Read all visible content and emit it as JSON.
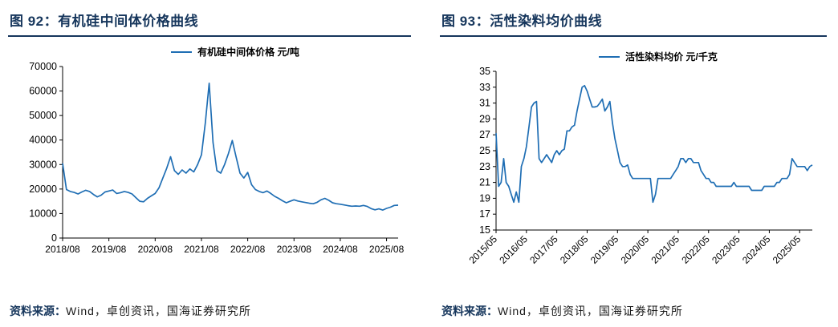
{
  "accent_color": "#1F6EB4",
  "title_color": "#16365C",
  "figures": [
    {
      "title": "图 92：有机硅中间体价格曲线",
      "legend": "有机硅中间体价格  元/吨",
      "source_label": "资料来源：",
      "source_text": "Wind，卓创资讯，国海证券研究所",
      "chart_data": {
        "type": "line",
        "series_name": "有机硅中间体价格 元/吨",
        "x_start": "2018/08",
        "x_step": "1 month",
        "ylim": [
          0,
          70000
        ],
        "yticks": [
          0,
          10000,
          20000,
          30000,
          40000,
          50000,
          60000,
          70000
        ],
        "x_ticks": [
          {
            "i": 0,
            "label": "2018/08"
          },
          {
            "i": 12,
            "label": "2019/08"
          },
          {
            "i": 24,
            "label": "2020/08"
          },
          {
            "i": 36,
            "label": "2021/08"
          },
          {
            "i": 48,
            "label": "2022/08"
          },
          {
            "i": 60,
            "label": "2023/08"
          },
          {
            "i": 72,
            "label": "2024/08"
          },
          {
            "i": 84,
            "label": "2025/08"
          }
        ],
        "values": [
          30500,
          19800,
          19000,
          18600,
          18000,
          18800,
          19500,
          19000,
          17800,
          16800,
          17500,
          18800,
          19200,
          19600,
          18200,
          18500,
          19000,
          18600,
          18000,
          16500,
          15000,
          14800,
          16200,
          17200,
          18200,
          20500,
          24500,
          28500,
          33200,
          27500,
          26000,
          27800,
          26500,
          28200,
          27000,
          30000,
          34000,
          47000,
          63200,
          39000,
          27500,
          26500,
          30000,
          34500,
          39800,
          33000,
          26500,
          24500,
          26800,
          21800,
          19800,
          19000,
          18500,
          19200,
          18200,
          17000,
          16200,
          15200,
          14400,
          15000,
          15600,
          15100,
          14800,
          14500,
          14200,
          14000,
          14600,
          15600,
          16200,
          15400,
          14400,
          14000,
          13800,
          13500,
          13200,
          13000,
          13100,
          13000,
          13300,
          12900,
          12000,
          11500,
          11900,
          11400,
          12100,
          12600,
          13300,
          13400
        ]
      }
    },
    {
      "title": "图 93：活性染料均价曲线",
      "legend": "活性染料均价  元/千克",
      "source_label": "资料来源：",
      "source_text": "Wind，卓创资讯，国海证券研究所",
      "chart_data": {
        "type": "line",
        "series_name": "活性染料均价 元/千克",
        "x_start": "2015/05",
        "x_step": "1 month",
        "ylim": [
          15,
          35
        ],
        "yticks": [
          15,
          17,
          19,
          21,
          23,
          25,
          27,
          29,
          31,
          33,
          35
        ],
        "x_ticks": [
          {
            "i": 0,
            "label": "2015/05"
          },
          {
            "i": 12,
            "label": "2016/05"
          },
          {
            "i": 24,
            "label": "2017/05"
          },
          {
            "i": 36,
            "label": "2018/05"
          },
          {
            "i": 48,
            "label": "2019/05"
          },
          {
            "i": 60,
            "label": "2020/05"
          },
          {
            "i": 72,
            "label": "2021/05"
          },
          {
            "i": 84,
            "label": "2022/05"
          },
          {
            "i": 96,
            "label": "2023/05"
          },
          {
            "i": 108,
            "label": "2024/05"
          },
          {
            "i": 120,
            "label": "2025/05"
          }
        ],
        "values": [
          27.2,
          20.5,
          21.0,
          24.0,
          21.0,
          20.5,
          19.5,
          18.5,
          19.8,
          18.5,
          23.0,
          24.0,
          25.5,
          28.0,
          30.5,
          31.0,
          31.2,
          24.0,
          23.5,
          24.0,
          24.5,
          24.0,
          23.5,
          24.5,
          25.0,
          24.5,
          25.0,
          25.2,
          27.5,
          27.5,
          28.0,
          28.2,
          30.0,
          31.5,
          33.0,
          33.2,
          32.5,
          31.5,
          30.5,
          30.5,
          30.6,
          31.0,
          31.5,
          30.0,
          30.5,
          31.2,
          28.5,
          26.5,
          25.0,
          23.5,
          23.0,
          23.0,
          23.2,
          22.0,
          21.5,
          21.5,
          21.5,
          21.5,
          21.5,
          21.5,
          21.5,
          21.5,
          18.5,
          19.5,
          21.5,
          21.5,
          21.5,
          21.5,
          21.5,
          21.5,
          22.0,
          22.5,
          23.0,
          24.0,
          24.0,
          23.5,
          24.0,
          24.0,
          23.5,
          23.5,
          23.5,
          22.5,
          22.0,
          21.5,
          21.5,
          21.0,
          21.0,
          20.5,
          20.5,
          20.5,
          20.5,
          20.5,
          20.5,
          20.5,
          21.0,
          20.5,
          20.5,
          20.5,
          20.5,
          20.5,
          20.5,
          20.0,
          20.0,
          20.0,
          20.0,
          20.0,
          20.5,
          20.5,
          20.5,
          20.5,
          20.5,
          21.0,
          21.0,
          21.5,
          21.5,
          21.5,
          22.0,
          24.0,
          23.5,
          23.0,
          23.0,
          23.0,
          23.0,
          22.5,
          23.0,
          23.2
        ]
      }
    }
  ]
}
